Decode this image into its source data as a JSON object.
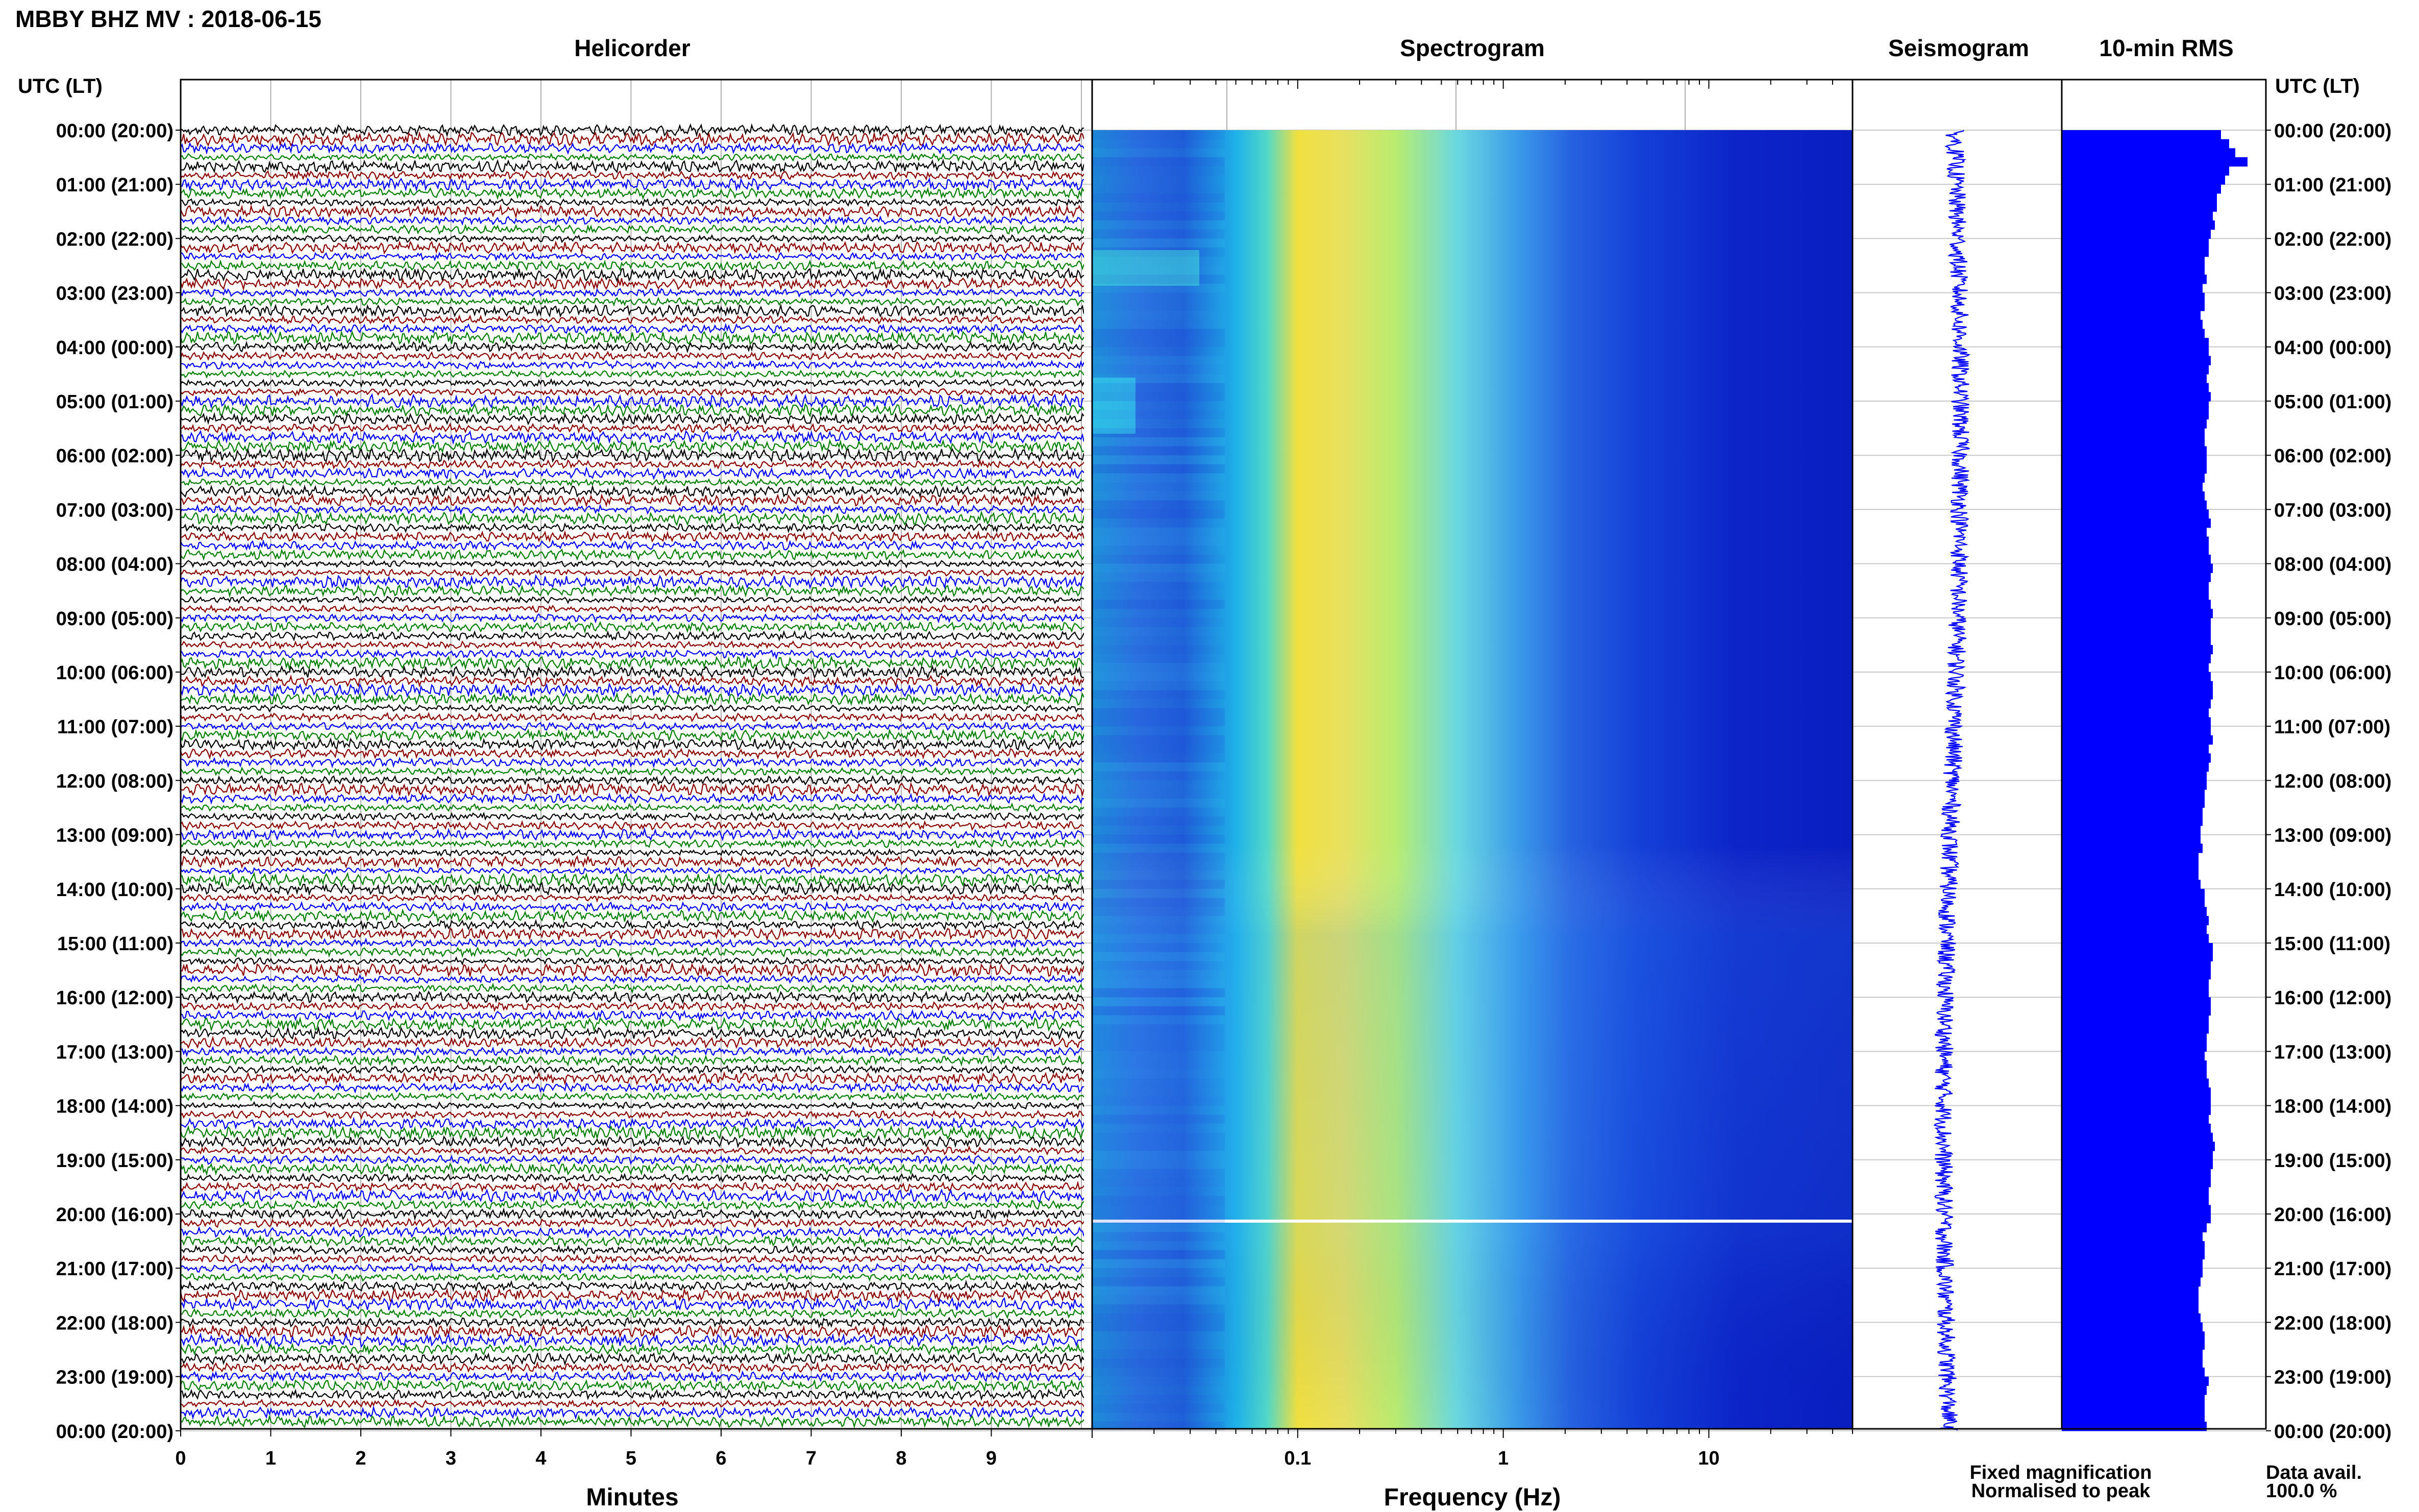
{
  "header": {
    "station_title": "MBBY BHZ MV : 2018-06-15",
    "left_axis_title": "UTC (LT)",
    "right_axis_title": "UTC (LT)"
  },
  "panels": {
    "helicorder": {
      "title": "Helicorder",
      "xlabel": "Minutes",
      "x_ticks": [
        "0",
        "1",
        "2",
        "3",
        "4",
        "5",
        "6",
        "7",
        "8",
        "9"
      ],
      "line_colors": [
        "#000000",
        "#8b0000",
        "#0000ff",
        "#008000"
      ]
    },
    "spectrogram": {
      "title": "Spectrogram",
      "xlabel": "Frequency (Hz)",
      "x_ticks": [
        "0.1",
        "1",
        "10"
      ],
      "xlim": [
        0.01,
        50
      ],
      "xscale": "log"
    },
    "seismogram": {
      "title": "Seismogram"
    },
    "rms": {
      "title": "10-min RMS"
    }
  },
  "time_labels": [
    "00:00 (20:00)",
    "01:00 (21:00)",
    "02:00 (22:00)",
    "03:00 (23:00)",
    "04:00 (00:00)",
    "05:00 (01:00)",
    "06:00 (02:00)",
    "07:00 (03:00)",
    "08:00 (04:00)",
    "09:00 (05:00)",
    "10:00 (06:00)",
    "11:00 (07:00)",
    "12:00 (08:00)",
    "13:00 (09:00)",
    "14:00 (10:00)",
    "15:00 (11:00)",
    "16:00 (12:00)",
    "17:00 (13:00)",
    "18:00 (14:00)",
    "19:00 (15:00)",
    "20:00 (16:00)",
    "21:00 (17:00)",
    "22:00 (18:00)",
    "23:00 (19:00)",
    "00:00 (20:00)"
  ],
  "legend": {
    "fixed_magnification": "Fixed magnification",
    "normalised_to_peak": "Normalised to peak",
    "fixed_color": "#0000ff",
    "normalised_color": "#ff0000"
  },
  "data_availability": {
    "label": "Data avail.",
    "value": "100.0 %"
  },
  "chart_data": {
    "type": "heatmap",
    "rows_per_hour": 6,
    "hours": 24,
    "rms_relative": [
      0.78,
      0.82,
      0.85,
      0.91,
      0.82,
      0.8,
      0.78,
      0.76,
      0.76,
      0.74,
      0.75,
      0.73,
      0.72,
      0.72,
      0.7,
      0.7,
      0.71,
      0.69,
      0.7,
      0.7,
      0.68,
      0.69,
      0.7,
      0.72,
      0.72,
      0.73,
      0.72,
      0.71,
      0.72,
      0.73,
      0.72,
      0.72,
      0.71,
      0.7,
      0.7,
      0.71,
      0.71,
      0.71,
      0.7,
      0.69,
      0.7,
      0.71,
      0.72,
      0.73,
      0.71,
      0.72,
      0.72,
      0.73,
      0.74,
      0.73,
      0.72,
      0.72,
      0.73,
      0.74,
      0.73,
      0.73,
      0.73,
      0.74,
      0.73,
      0.72,
      0.73,
      0.74,
      0.74,
      0.73,
      0.72,
      0.73,
      0.73,
      0.74,
      0.72,
      0.73,
      0.72,
      0.71,
      0.71,
      0.7,
      0.7,
      0.69,
      0.69,
      0.68,
      0.68,
      0.69,
      0.67,
      0.67,
      0.67,
      0.68,
      0.7,
      0.7,
      0.71,
      0.72,
      0.71,
      0.72,
      0.74,
      0.74,
      0.73,
      0.73,
      0.72,
      0.72,
      0.73,
      0.73,
      0.72,
      0.72,
      0.71,
      0.71,
      0.7,
      0.71,
      0.71,
      0.72,
      0.73,
      0.73,
      0.73,
      0.72,
      0.73,
      0.74,
      0.75,
      0.74,
      0.74,
      0.73,
      0.73,
      0.72,
      0.72,
      0.73,
      0.73,
      0.71,
      0.69,
      0.7,
      0.7,
      0.69,
      0.69,
      0.68,
      0.67,
      0.67,
      0.67,
      0.68,
      0.69,
      0.7,
      0.7,
      0.69,
      0.69,
      0.7,
      0.72,
      0.71,
      0.7,
      0.7,
      0.7,
      0.71
    ]
  }
}
